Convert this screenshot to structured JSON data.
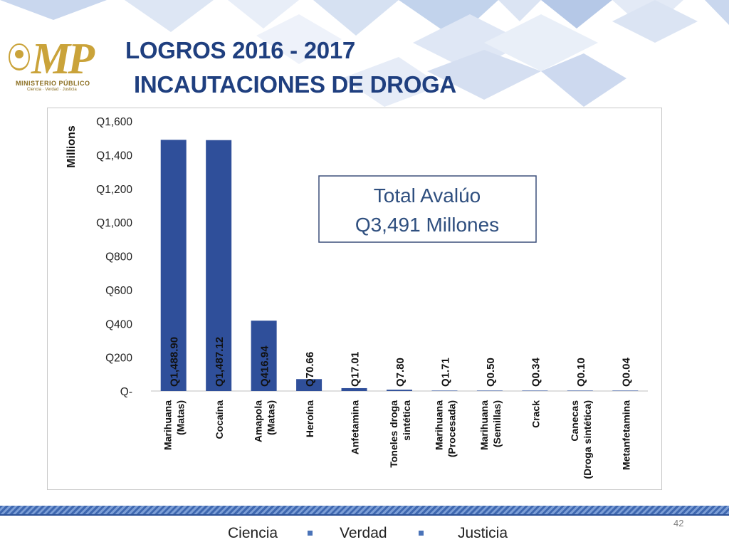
{
  "header": {
    "logo": {
      "mark": "MP",
      "org_name": "MINISTERIO PÚBLICO",
      "tagline": "Ciencia · Verdad · Justicia"
    },
    "title_line1": "LOGROS 2016 - 2017",
    "title_line2": "INCAUTACIONES DE DROGA"
  },
  "chart_data": {
    "type": "bar",
    "ylabel": "Millions",
    "ylim": [
      0,
      1600
    ],
    "y_ticks": [
      "Q-",
      "Q200",
      "Q400",
      "Q600",
      "Q800",
      "Q1,000",
      "Q1,200",
      "Q1,400",
      "Q1,600"
    ],
    "y_tick_values": [
      0,
      200,
      400,
      600,
      800,
      1000,
      1200,
      1400,
      1600
    ],
    "categories": [
      [
        "Marihuana",
        "(Matas)"
      ],
      [
        "Cocaína"
      ],
      [
        "Amapola",
        "(Matas)"
      ],
      [
        "Heroína"
      ],
      [
        "Anfetamina"
      ],
      [
        "Toneles droga",
        "sintética"
      ],
      [
        "Marihuana",
        "(Procesada)"
      ],
      [
        "Marihuana",
        "(Semillas)"
      ],
      [
        "Crack"
      ],
      [
        "Canecas",
        "(Droga sintética)"
      ],
      [
        "Metanfetamina"
      ]
    ],
    "values": [
      1488.9,
      1487.12,
      416.94,
      70.66,
      17.01,
      7.8,
      1.71,
      0.5,
      0.34,
      0.1,
      0.04
    ],
    "data_labels": [
      "Q1,488.90",
      "Q1,487.12",
      "Q416.94",
      "Q70.66",
      "Q17.01",
      "Q7.80",
      "Q1.71",
      "Q0.50",
      "Q0.34",
      "Q0.10",
      "Q0.04"
    ],
    "bar_color": "#2f4f9a",
    "grid": false,
    "annotation": {
      "line1": "Total Avalúo",
      "line2": "Q3,491 Millones"
    }
  },
  "footer": {
    "page_number": "42",
    "motto": [
      "Ciencia",
      "Verdad",
      "Justicia"
    ]
  }
}
